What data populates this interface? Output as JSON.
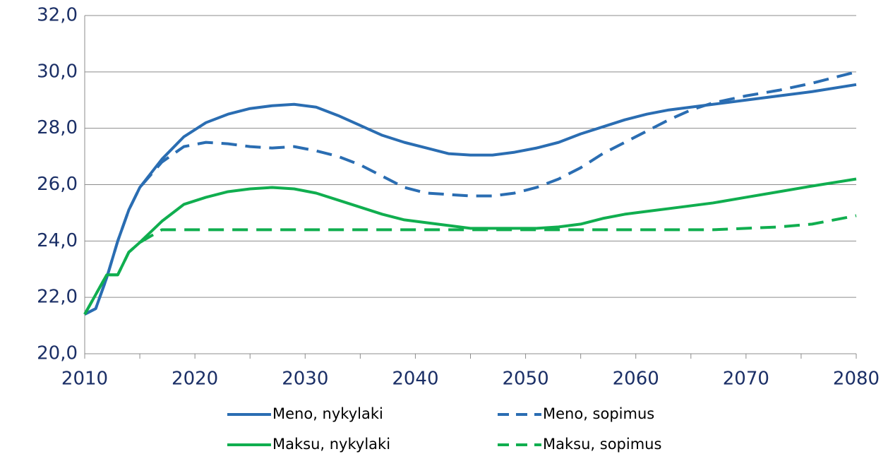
{
  "chart_data": {
    "type": "line",
    "x": [
      2010,
      2011,
      2012,
      2013,
      2014,
      2015,
      2017,
      2019,
      2021,
      2023,
      2025,
      2027,
      2029,
      2031,
      2033,
      2035,
      2037,
      2039,
      2041,
      2043,
      2045,
      2047,
      2049,
      2051,
      2053,
      2055,
      2057,
      2059,
      2061,
      2063,
      2065,
      2067,
      2070,
      2073,
      2076,
      2080
    ],
    "series": [
      {
        "name": "Meno, nykylaki",
        "color": "#2a6db2",
        "dashed": false,
        "values": [
          21.4,
          21.6,
          22.7,
          24.0,
          25.1,
          25.9,
          26.9,
          27.7,
          28.2,
          28.5,
          28.7,
          28.8,
          28.85,
          28.75,
          28.45,
          28.1,
          27.75,
          27.5,
          27.3,
          27.1,
          27.05,
          27.05,
          27.15,
          27.3,
          27.5,
          27.8,
          28.05,
          28.3,
          28.5,
          28.65,
          28.75,
          28.85,
          29.0,
          29.15,
          29.3,
          29.55
        ]
      },
      {
        "name": "Meno, sopimus",
        "color": "#2a6db2",
        "dashed": true,
        "values": [
          21.4,
          21.6,
          22.7,
          24.0,
          25.1,
          25.9,
          26.8,
          27.35,
          27.5,
          27.45,
          27.35,
          27.3,
          27.35,
          27.2,
          27.0,
          26.7,
          26.3,
          25.9,
          25.7,
          25.65,
          25.6,
          25.6,
          25.7,
          25.9,
          26.2,
          26.6,
          27.1,
          27.5,
          27.9,
          28.3,
          28.65,
          28.9,
          29.15,
          29.35,
          29.6,
          30.0
        ]
      },
      {
        "name": "Maksu, nykylaki",
        "color": "#10ae4f",
        "dashed": false,
        "values": [
          21.4,
          22.1,
          22.8,
          22.8,
          23.6,
          23.95,
          24.7,
          25.3,
          25.55,
          25.75,
          25.85,
          25.9,
          25.85,
          25.7,
          25.45,
          25.2,
          24.95,
          24.75,
          24.65,
          24.55,
          24.45,
          24.45,
          24.45,
          24.45,
          24.5,
          24.6,
          24.8,
          24.95,
          25.05,
          25.15,
          25.25,
          25.35,
          25.55,
          25.75,
          25.95,
          26.2
        ]
      },
      {
        "name": "Maksu, sopimus",
        "color": "#10ae4f",
        "dashed": true,
        "values": [
          21.4,
          22.1,
          22.8,
          22.8,
          23.6,
          23.95,
          24.4,
          24.4,
          24.4,
          24.4,
          24.4,
          24.4,
          24.4,
          24.4,
          24.4,
          24.4,
          24.4,
          24.4,
          24.4,
          24.4,
          24.4,
          24.4,
          24.4,
          24.4,
          24.4,
          24.4,
          24.4,
          24.4,
          24.4,
          24.4,
          24.4,
          24.4,
          24.45,
          24.5,
          24.6,
          24.9
        ]
      }
    ],
    "xlim": [
      2010,
      2080
    ],
    "xticks": [
      2010,
      2020,
      2030,
      2040,
      2050,
      2060,
      2070,
      2080
    ],
    "ylim": [
      20,
      32
    ],
    "yticks": [
      {
        "value": 20,
        "label": "20,0"
      },
      {
        "value": 22,
        "label": "22,0"
      },
      {
        "value": 24,
        "label": "24,0"
      },
      {
        "value": 26,
        "label": "26,0"
      },
      {
        "value": 28,
        "label": "28,0"
      },
      {
        "value": 30,
        "label": "30,0"
      },
      {
        "value": 32,
        "label": "32,0"
      }
    ],
    "grid": true,
    "legend": "bottom"
  }
}
